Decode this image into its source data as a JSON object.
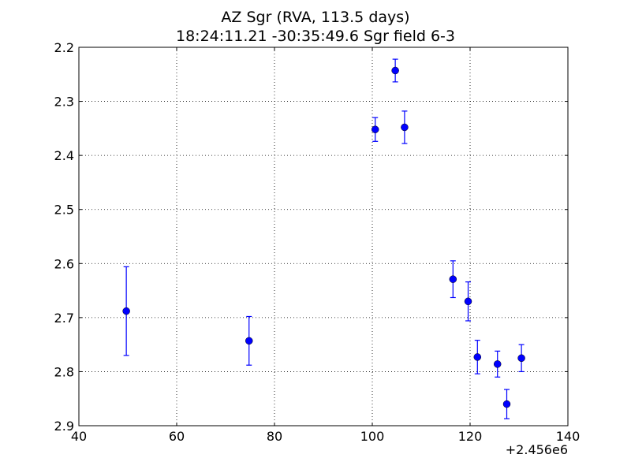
{
  "chart_data": {
    "type": "scatter",
    "title": "AZ Sgr  (RVA, 113.5 days)",
    "subtitle": "18:24:11.21 -30:35:49.6 Sgr field 6-3",
    "xlabel": "",
    "ylabel": "",
    "x_offset_label": "+2.456e6",
    "xlim": [
      40,
      140
    ],
    "ylim": [
      2.2,
      2.9
    ],
    "y_inverted": true,
    "grid": true,
    "marker_color": "#0000ff",
    "error_bars": true,
    "x_ticks": [
      "40",
      "60",
      "80",
      "100",
      "120",
      "140"
    ],
    "y_ticks": [
      "2.2",
      "2.3",
      "2.4",
      "2.5",
      "2.6",
      "2.7",
      "2.8",
      "2.9"
    ],
    "points": [
      {
        "x": 49.7,
        "y": 2.688,
        "err": 0.082
      },
      {
        "x": 74.8,
        "y": 2.743,
        "err": 0.045
      },
      {
        "x": 100.6,
        "y": 2.352,
        "err": 0.022
      },
      {
        "x": 104.7,
        "y": 2.243,
        "err": 0.021
      },
      {
        "x": 106.6,
        "y": 2.348,
        "err": 0.03
      },
      {
        "x": 116.5,
        "y": 2.629,
        "err": 0.034
      },
      {
        "x": 119.6,
        "y": 2.67,
        "err": 0.036
      },
      {
        "x": 121.5,
        "y": 2.773,
        "err": 0.031
      },
      {
        "x": 125.6,
        "y": 2.786,
        "err": 0.024
      },
      {
        "x": 127.5,
        "y": 2.86,
        "err": 0.027
      },
      {
        "x": 130.5,
        "y": 2.775,
        "err": 0.025
      }
    ]
  }
}
